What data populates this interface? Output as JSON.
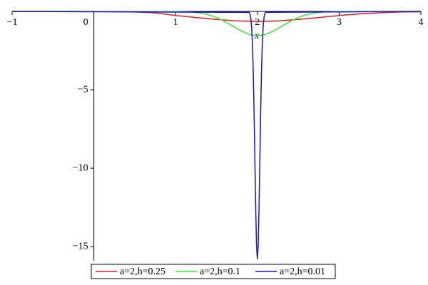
{
  "chart_data": {
    "type": "line",
    "x_label": "x",
    "xlim": [
      -1,
      4
    ],
    "ylim": [
      -15.9,
      0
    ],
    "xticks": [
      {
        "value": -1,
        "label": "−1"
      },
      0,
      1,
      2,
      3,
      4
    ],
    "yticks": [
      {
        "value": -5,
        "label": "−5"
      },
      {
        "value": -10,
        "label": "−10"
      },
      {
        "value": -15,
        "label": "−15"
      }
    ],
    "series": [
      {
        "name": "a=2,h=0.25",
        "color": "#e02020",
        "x": [
          -1,
          -0.75,
          -0.5,
          -0.25,
          0,
          0.25,
          0.5,
          0.75,
          1,
          1.25,
          1.5,
          1.75,
          2,
          2.25,
          2.5,
          2.75,
          3,
          3.25,
          3.5,
          3.75,
          4
        ],
        "values": [
          0,
          0,
          0,
          0,
          -0.01,
          -0.02,
          -0.04,
          -0.09,
          -0.26,
          -0.39,
          -0.51,
          -0.61,
          -0.64,
          -0.61,
          -0.51,
          -0.39,
          -0.26,
          -0.16,
          -0.09,
          -0.04,
          -0.02
        ]
      },
      {
        "name": "a=2,h=0.1",
        "color": "#33ee33",
        "x": [
          -1,
          1,
          1.1,
          1.2,
          1.3,
          1.4,
          1.5,
          1.6,
          1.7,
          1.8,
          1.9,
          2,
          2.1,
          2.2,
          2.3,
          2.4,
          2.5,
          2.6,
          2.7,
          2.8,
          2.9,
          3,
          4
        ],
        "values": [
          0,
          -0.01,
          -0.02,
          -0.04,
          -0.1,
          -0.21,
          -0.39,
          -0.64,
          -0.94,
          -1.24,
          -1.47,
          -1.55,
          -1.47,
          -1.24,
          -0.94,
          -0.64,
          -0.39,
          -0.21,
          -0.1,
          -0.04,
          -0.02,
          -0.01,
          0
        ]
      },
      {
        "name": "a=2,h=0.01",
        "color": "#1414c8",
        "x": [
          -1,
          1.9,
          1.91,
          1.92,
          1.93,
          1.94,
          1.95,
          1.96,
          1.97,
          1.98,
          1.99,
          2,
          2.01,
          2.02,
          2.03,
          2.04,
          2.05,
          2.06,
          2.07,
          2.08,
          2.09,
          2.1,
          4
        ],
        "values": [
          0,
          -0.06,
          -0.17,
          -0.45,
          -1.04,
          -2.14,
          -3.93,
          -6.5,
          -9.59,
          -12.66,
          -14.95,
          -15.8,
          -14.95,
          -12.66,
          -9.59,
          -6.5,
          -3.93,
          -2.14,
          -1.04,
          -0.45,
          -0.17,
          -0.06,
          0
        ]
      }
    ]
  }
}
